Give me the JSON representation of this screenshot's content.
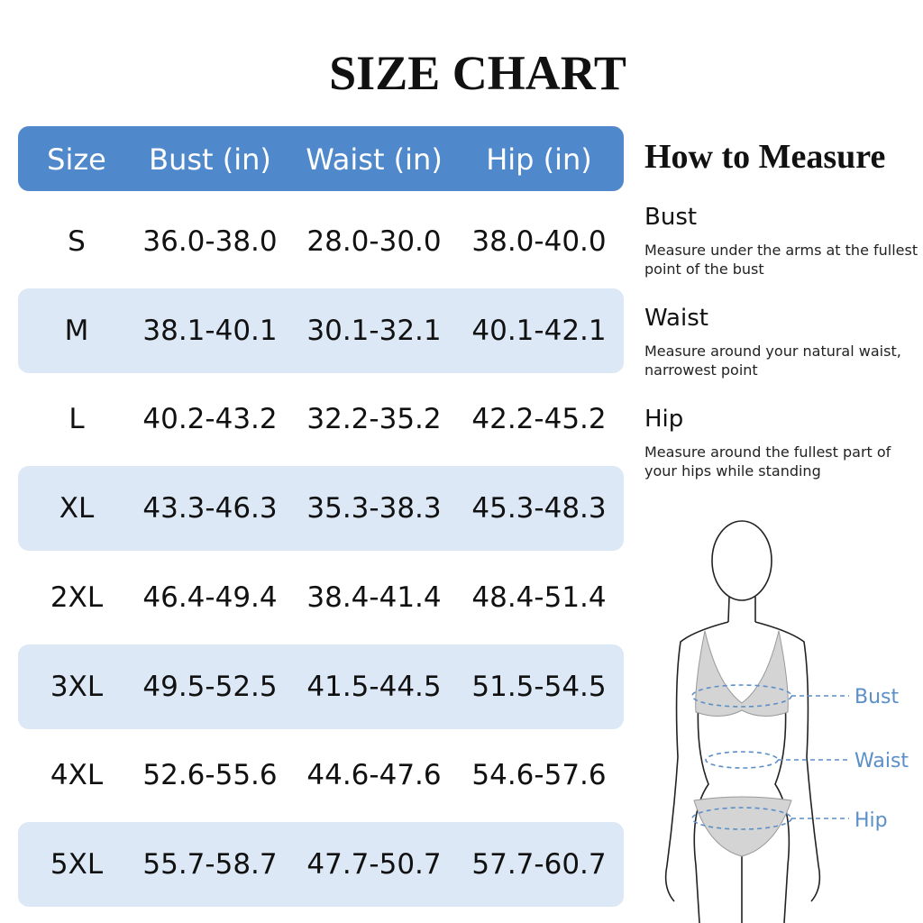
{
  "header": {
    "title": "SIZE CHART"
  },
  "table": {
    "columns": [
      "Size",
      "Bust (in)",
      "Waist (in)",
      "Hip (in)"
    ],
    "rows": [
      [
        "S",
        "36.0-38.0",
        "28.0-30.0",
        "38.0-40.0"
      ],
      [
        "M",
        "38.1-40.1",
        "30.1-32.1",
        "40.1-42.1"
      ],
      [
        "L",
        "40.2-43.2",
        "32.2-35.2",
        "42.2-45.2"
      ],
      [
        "XL",
        "43.3-46.3",
        "35.3-38.3",
        "45.3-48.3"
      ],
      [
        "2XL",
        "46.4-49.4",
        "38.4-41.4",
        "48.4-51.4"
      ],
      [
        "3XL",
        "49.5-52.5",
        "41.5-44.5",
        "51.5-54.5"
      ],
      [
        "4XL",
        "52.6-55.6",
        "44.6-47.6",
        "54.6-57.6"
      ],
      [
        "5XL",
        "55.7-58.7",
        "47.7-50.7",
        "57.7-60.7"
      ]
    ]
  },
  "guide": {
    "title": "How to Measure",
    "items": [
      {
        "name": "Bust",
        "lines": [
          "Measure under the arms at the fullest",
          "point of the bust"
        ]
      },
      {
        "name": "Waist",
        "lines": [
          "Measure around your natural waist,",
          "narrowest point"
        ]
      },
      {
        "name": "Hip",
        "lines": [
          "Measure around the fullest part of",
          "your hips while standing"
        ]
      }
    ]
  },
  "figure": {
    "labels": [
      "Bust",
      "Waist",
      "Hip"
    ]
  }
}
